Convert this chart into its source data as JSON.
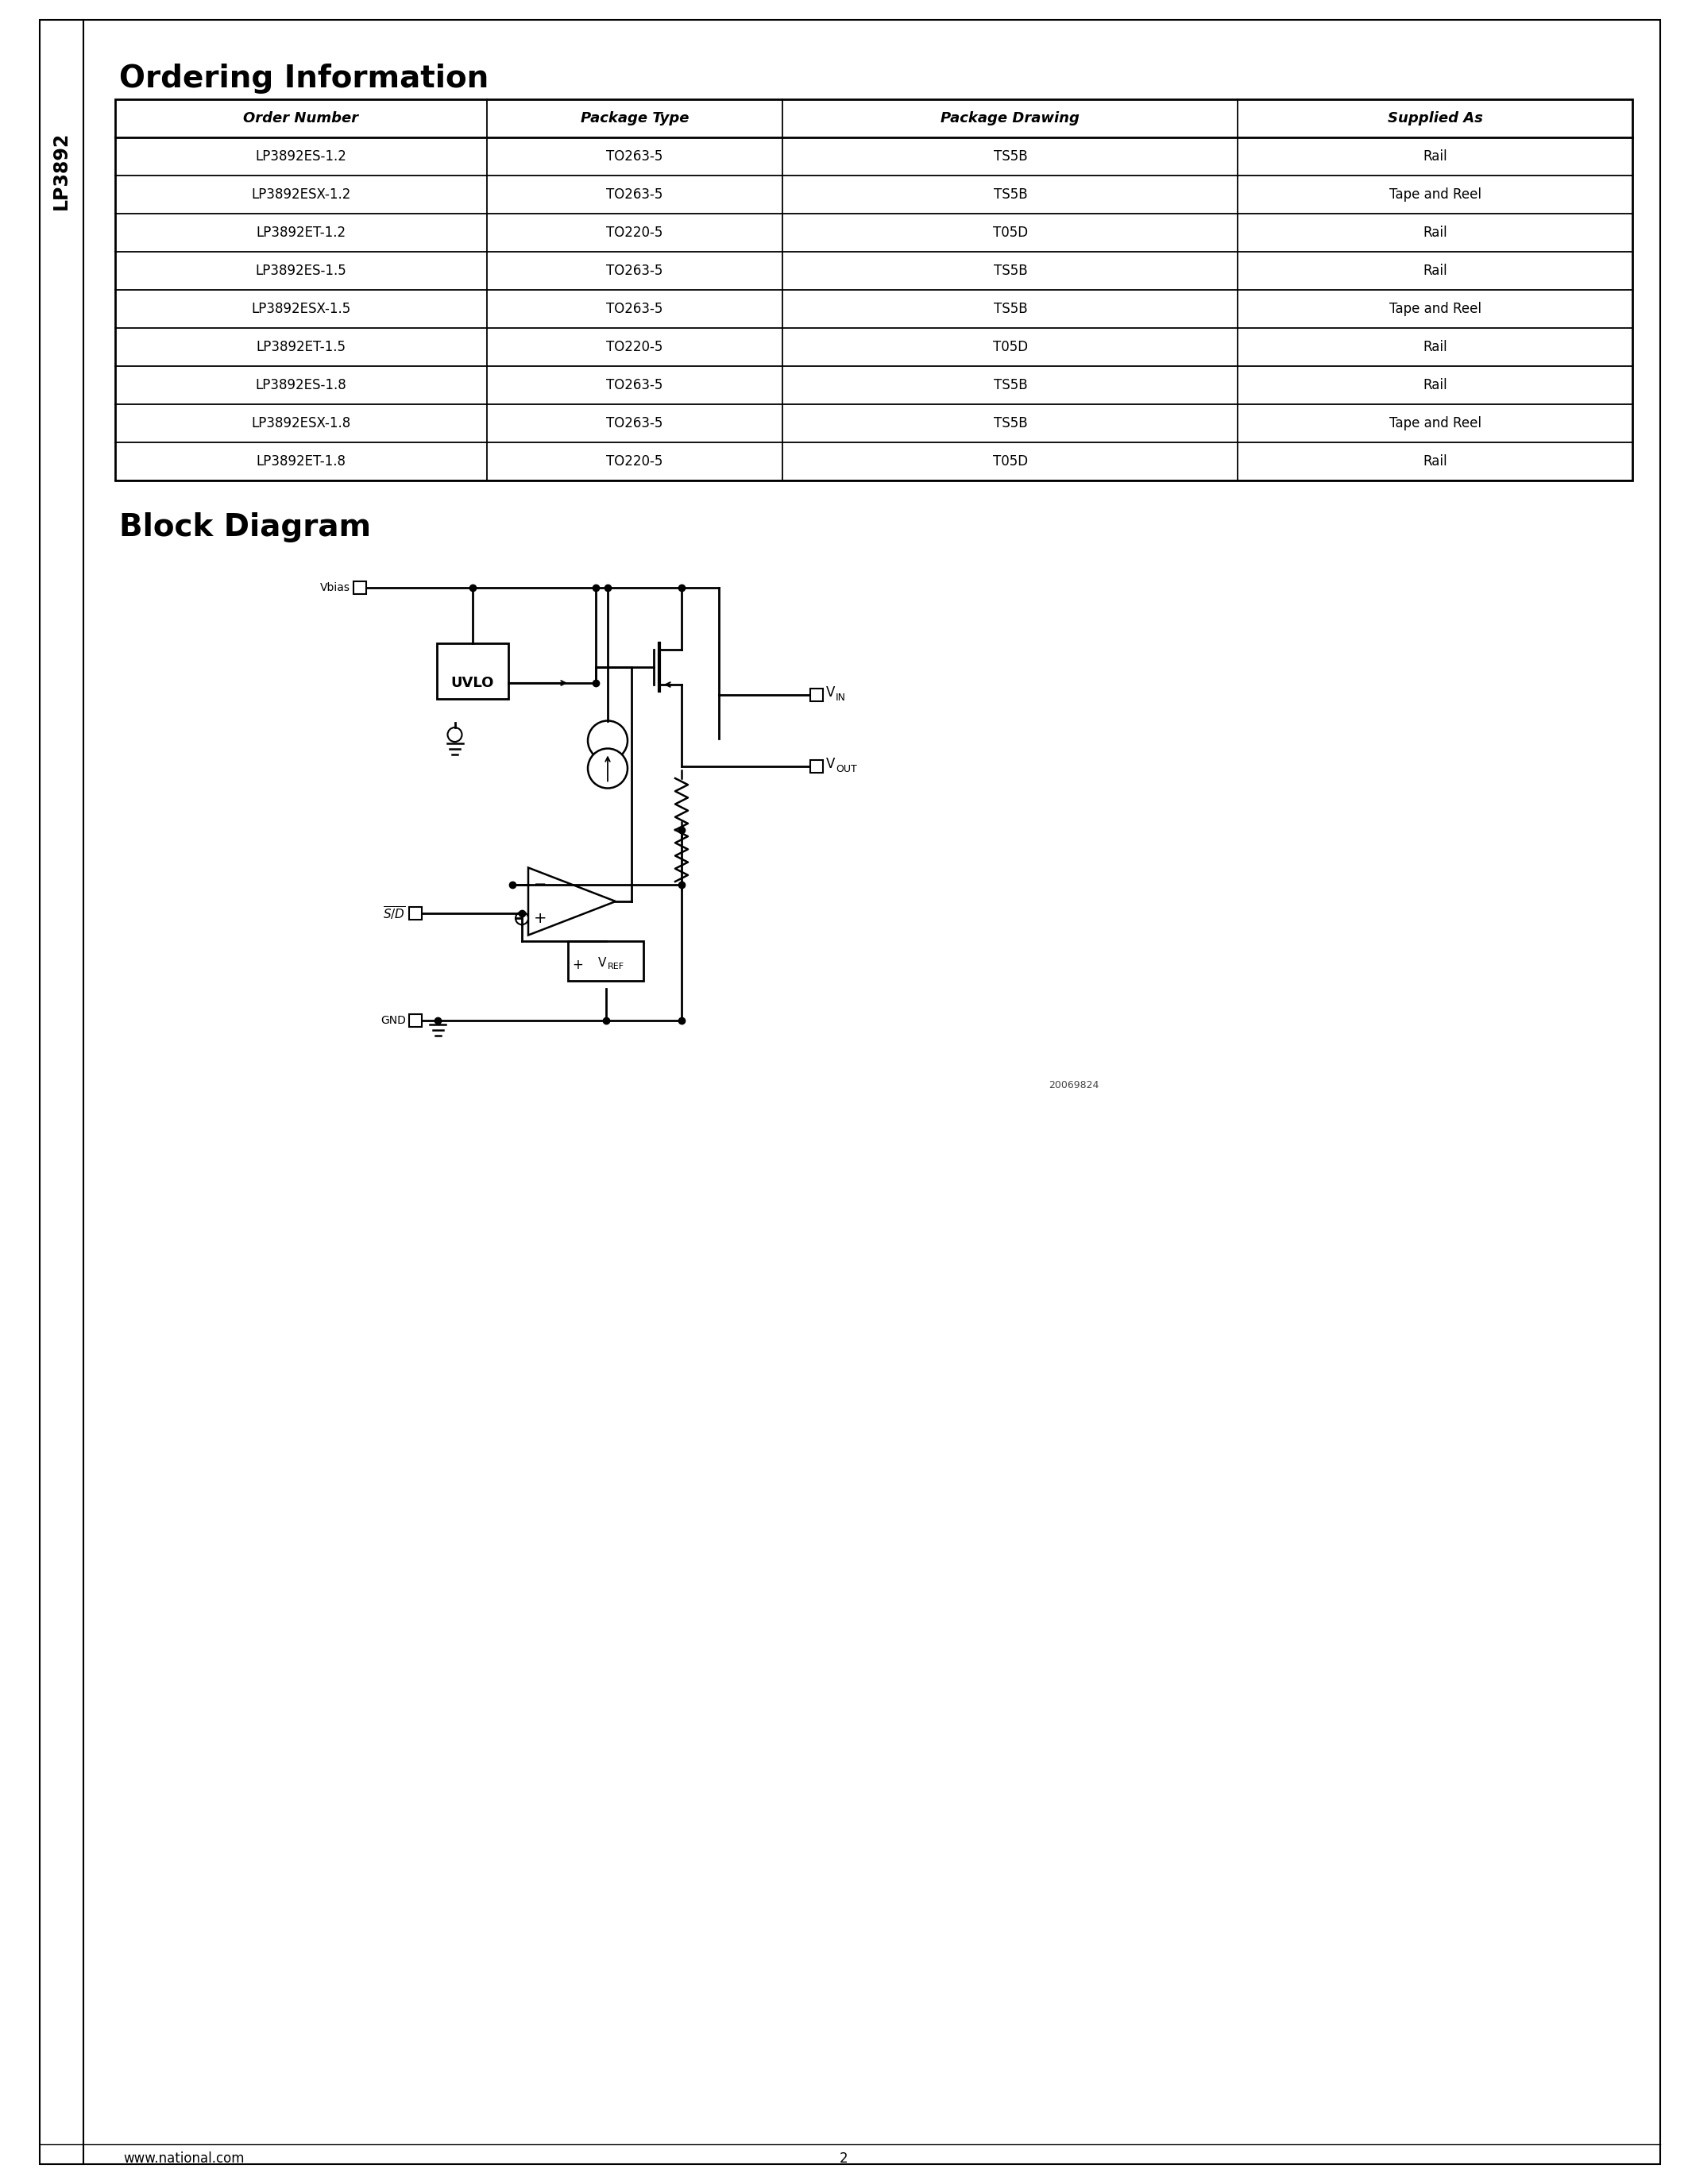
{
  "title": "Ordering Information",
  "block_diagram_title": "Block Diagram",
  "table_headers": [
    "Order Number",
    "Package Type",
    "Package Drawing",
    "Supplied As"
  ],
  "table_rows": [
    [
      "LP3892ES-1.2",
      "TO263-5",
      "TS5B",
      "Rail"
    ],
    [
      "LP3892ESX-1.2",
      "TO263-5",
      "TS5B",
      "Tape and Reel"
    ],
    [
      "LP3892ET-1.2",
      "TO220-5",
      "T05D",
      "Rail"
    ],
    [
      "LP3892ES-1.5",
      "TO263-5",
      "TS5B",
      "Rail"
    ],
    [
      "LP3892ESX-1.5",
      "TO263-5",
      "TS5B",
      "Tape and Reel"
    ],
    [
      "LP3892ET-1.5",
      "TO220-5",
      "T05D",
      "Rail"
    ],
    [
      "LP3892ES-1.8",
      "TO263-5",
      "TS5B",
      "Rail"
    ],
    [
      "LP3892ESX-1.8",
      "TO263-5",
      "TS5B",
      "Tape and Reel"
    ],
    [
      "LP3892ET-1.8",
      "TO220-5",
      "T05D",
      "Rail"
    ]
  ],
  "sidebar_text": "LP3892",
  "footer_left": "www.national.com",
  "footer_center": "2",
  "image_id": "20069824",
  "bg_color": "#ffffff",
  "border_color": "#000000",
  "text_color": "#000000"
}
